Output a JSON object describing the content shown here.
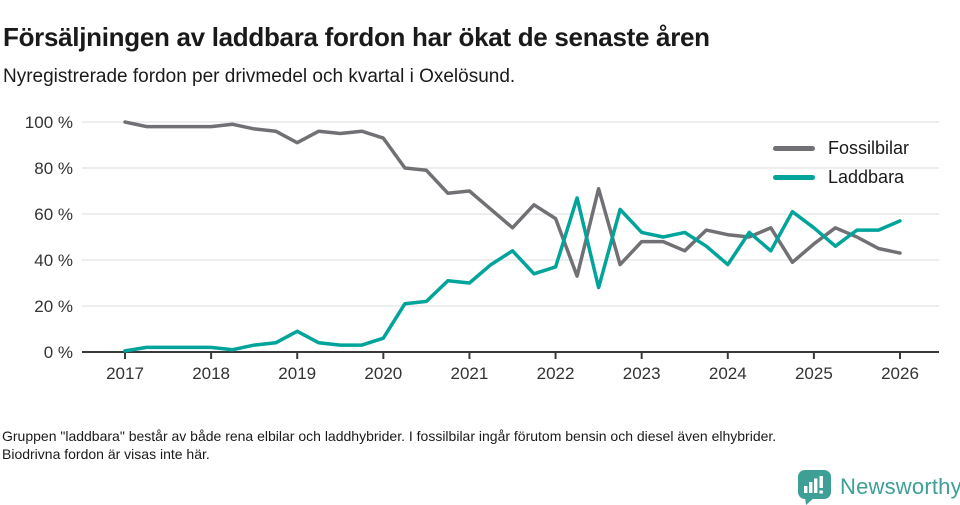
{
  "header": {
    "title": "Försäljningen av laddbara fordon har ökat de senaste åren",
    "subtitle": "Nyregistrerade fordon per drivmedel och kvartal i Oxelösund."
  },
  "chart_data": {
    "type": "line",
    "x_unit": "quarter",
    "x_start": "2017 Q1",
    "x_end": "2026 Q1",
    "x_tick_labels": [
      "2017",
      "2018",
      "2019",
      "2020",
      "2021",
      "2022",
      "2023",
      "2024",
      "2025",
      "2026"
    ],
    "ylim": [
      0,
      100
    ],
    "y_ticks": [
      0,
      20,
      40,
      60,
      80,
      100
    ],
    "y_tick_suffix": " %",
    "grid": "horizontal",
    "legend_position": "top-right",
    "series": [
      {
        "name": "Fossilbilar",
        "color": "#717175",
        "values": [
          100,
          98,
          98,
          98,
          98,
          99,
          97,
          96,
          91,
          96,
          95,
          96,
          93,
          80,
          79,
          69,
          70,
          62,
          54,
          64,
          58,
          33,
          71,
          38,
          48,
          48,
          44,
          53,
          51,
          50,
          54,
          39,
          47,
          54,
          50,
          45,
          43
        ]
      },
      {
        "name": "Laddbara",
        "color": "#00a49a",
        "values": [
          0.5,
          2,
          2,
          2,
          2,
          1,
          3,
          4,
          9,
          4,
          3,
          3,
          6,
          21,
          22,
          31,
          30,
          38,
          44,
          34,
          37,
          67,
          28,
          62,
          52,
          50,
          52,
          46,
          38,
          52,
          44,
          61,
          54,
          46,
          53,
          53,
          57
        ]
      }
    ]
  },
  "footnote": "Gruppen \"laddbara\" består av både rena elbilar och laddhybrider. I fossilbilar ingår förutom bensin och diesel även elhybrider. Biodrivna fordon är visas inte här.",
  "logo": {
    "text": "Newsworthy",
    "color": "#3d9f96"
  },
  "style": {
    "grid_color": "#dcdcdc",
    "axis_color": "#3a3a3a",
    "tick_text_color": "#333333"
  }
}
